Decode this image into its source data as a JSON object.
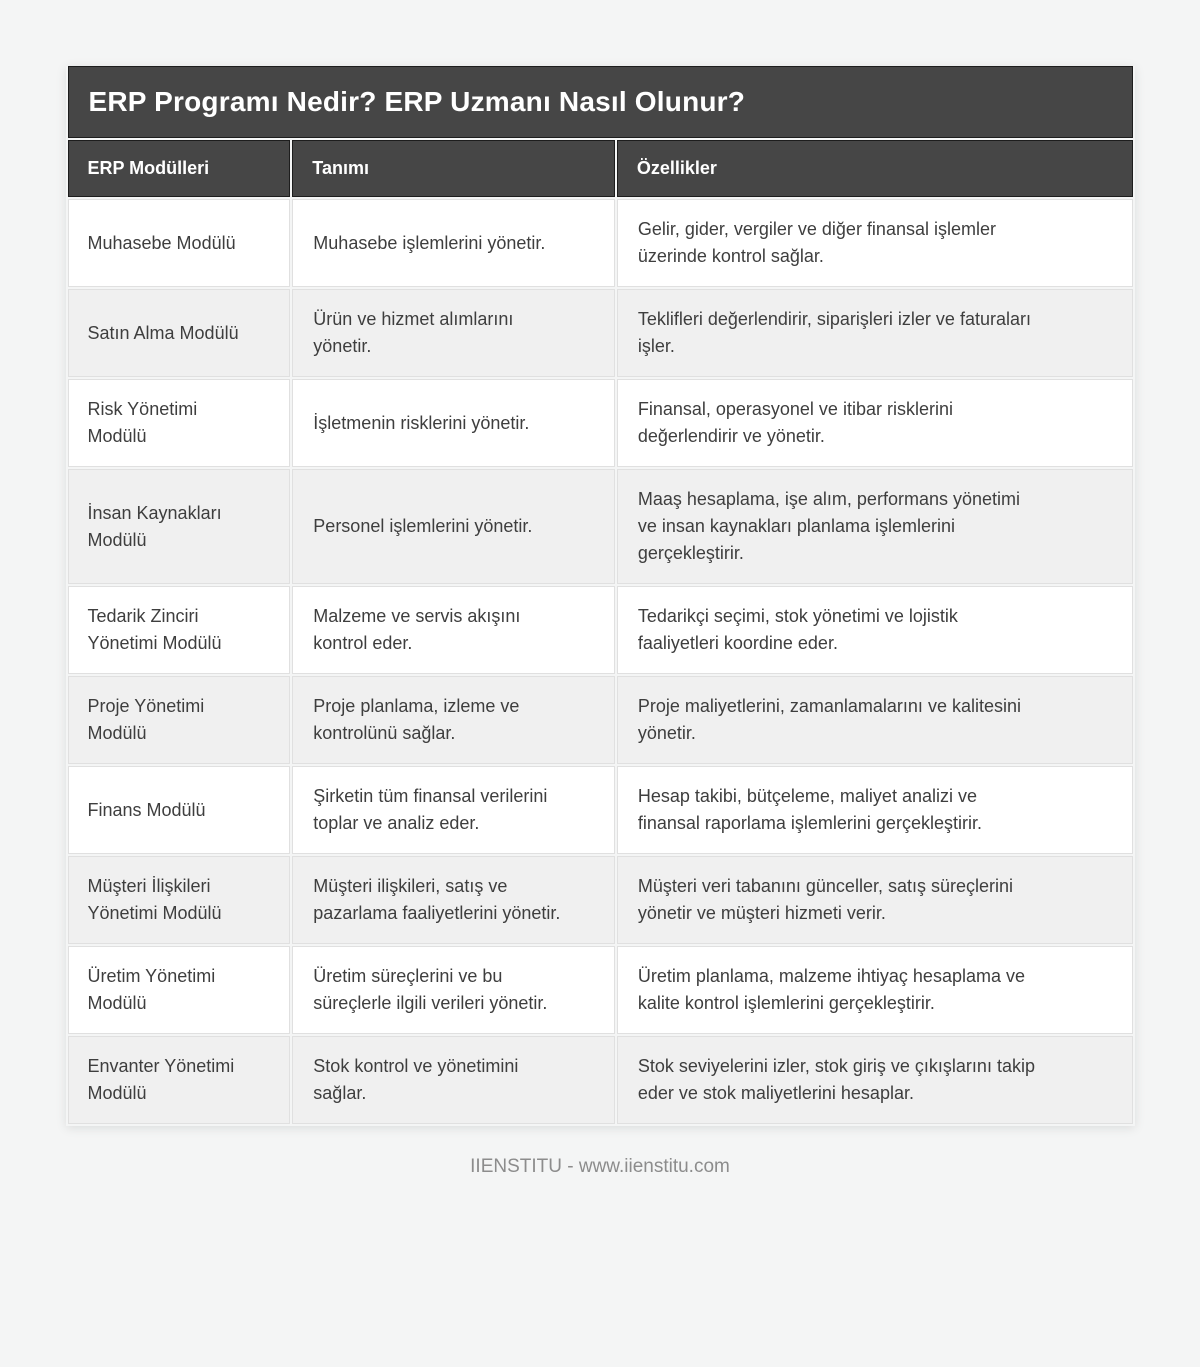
{
  "page": {
    "title": "ERP Programı Nedir? ERP Uzmanı Nasıl Olunur?",
    "footer": "IIENSTITU - www.iienstitu.com"
  },
  "table": {
    "columns": [
      "ERP Modülleri",
      "Tanımı",
      "Özellikler"
    ],
    "rows": [
      {
        "module": "Muhasebe Modülü",
        "definition": "Muhasebe işlemlerini yönetir.",
        "features": "Gelir, gider, vergiler ve diğer finansal işlemler üzerinde kontrol sağlar."
      },
      {
        "module": "Satın Alma Modülü",
        "definition": "Ürün ve hizmet alımlarını yönetir.",
        "features": "Teklifleri değerlendirir, siparişleri izler ve faturaları işler."
      },
      {
        "module": "Risk Yönetimi Modülü",
        "definition": "İşletmenin risklerini yönetir.",
        "features": "Finansal, operasyonel ve itibar risklerini değerlendirir ve yönetir."
      },
      {
        "module": "İnsan Kaynakları Modülü",
        "definition": "Personel işlemlerini yönetir.",
        "features": "Maaş hesaplama, işe alım, performans yönetimi ve insan kaynakları planlama işlemlerini gerçekleştirir."
      },
      {
        "module": "Tedarik Zinciri Yönetimi Modülü",
        "definition": "Malzeme ve servis akışını kontrol eder.",
        "features": "Tedarikçi seçimi, stok yönetimi ve lojistik faaliyetleri koordine eder."
      },
      {
        "module": "Proje Yönetimi Modülü",
        "definition": "Proje planlama, izleme ve kontrolünü sağlar.",
        "features": "Proje maliyetlerini, zamanlamalarını ve kalitesini yönetir."
      },
      {
        "module": "Finans Modülü",
        "definition": "Şirketin tüm finansal verilerini toplar ve analiz eder.",
        "features": "Hesap takibi, bütçeleme, maliyet analizi ve finansal raporlama işlemlerini gerçekleştirir."
      },
      {
        "module": "Müşteri İlişkileri Yönetimi Modülü",
        "definition": "Müşteri ilişkileri, satış ve pazarlama faaliyetlerini yönetir.",
        "features": "Müşteri veri tabanını günceller, satış süreçlerini yönetir ve müşteri hizmeti verir."
      },
      {
        "module": "Üretim Yönetimi Modülü",
        "definition": "Üretim süreçlerini ve bu süreçlerle ilgili verileri yönetir.",
        "features": "Üretim planlama, malzeme ihtiyaç hesaplama ve kalite kontrol işlemlerini gerçekleştirir."
      },
      {
        "module": "Envanter Yönetimi Modülü",
        "definition": "Stok kontrol ve yönetimini sağlar.",
        "features": "Stok seviyelerini izler, stok giriş ve çıkışlarını takip eder ve stok maliyetlerini hesaplar."
      }
    ]
  },
  "colors": {
    "page_background": "#f4f5f5",
    "header_background": "#464646",
    "header_border": "#1d1d1d",
    "header_text": "#ffffff",
    "row_background": "#ffffff",
    "row_alt_background": "#f0f0f0",
    "cell_border": "#e0e0e0",
    "body_text": "#3e3e3e",
    "footer_text": "#8c8c8c"
  }
}
